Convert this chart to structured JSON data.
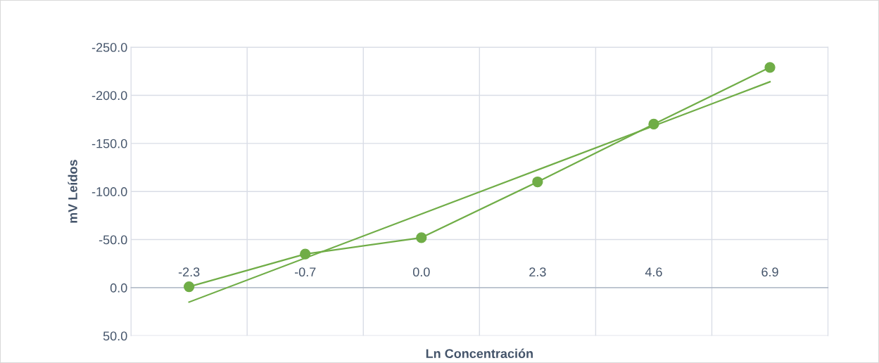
{
  "chart_data": {
    "type": "line",
    "xlabel": "Ln Concentración",
    "ylabel": "mV Leídos",
    "categories": [
      "-2.3",
      "-0.7",
      "0.0",
      "2.3",
      "4.6",
      "6.9"
    ],
    "series": [
      {
        "color": "#70ad47",
        "values": [
          -1,
          -35,
          -52,
          -110,
          -170,
          -229
        ],
        "marker": "circle"
      },
      {
        "color": "#70ad47",
        "x": [
          "-2.3",
          "6.9"
        ],
        "values": [
          15,
          -214
        ],
        "marker": "none"
      }
    ],
    "ylim": [
      50,
      -250
    ],
    "yticks": [
      {
        "value": -250,
        "label": "-250.0"
      },
      {
        "value": -200,
        "label": "-200.0"
      },
      {
        "value": -150,
        "label": "-150.0"
      },
      {
        "value": -100,
        "label": "-100.0"
      },
      {
        "value": -50,
        "label": "-50.0"
      },
      {
        "value": 0,
        "label": "0.0"
      },
      {
        "value": 50,
        "label": "50.0"
      }
    ],
    "grid": true
  }
}
